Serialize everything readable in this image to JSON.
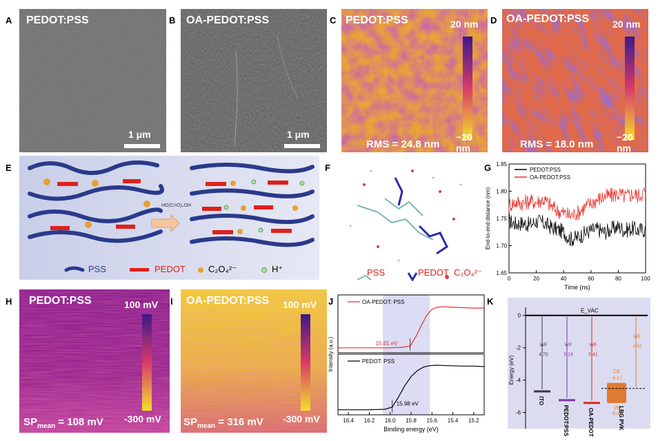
{
  "panel_letters": [
    "A",
    "B",
    "C",
    "D",
    "E",
    "F",
    "G",
    "H",
    "I",
    "J",
    "K"
  ],
  "panelA": {
    "title": "PEDOT:PSS",
    "scale": "1 μm"
  },
  "panelB": {
    "title": "OA-PEDOT:PSS",
    "scale": "1 μm"
  },
  "panelC": {
    "title": "PEDOT:PSS",
    "cb_max": "20 nm",
    "cb_min": "−20 nm",
    "rms": "RMS = 24.8 nm"
  },
  "panelD": {
    "title": "OA-PEDOT:PSS",
    "cb_max": "20 nm",
    "cb_min": "−20 nm",
    "rms": "RMS = 18.0 nm"
  },
  "panelE": {
    "legend": {
      "pss": "PSS",
      "pedot": "PEDOT",
      "c2o4": "C₂O₄²⁻",
      "h": "H⁺"
    }
  },
  "panelF": {
    "legend": {
      "pss": "PSS",
      "pedot": "PEDOT",
      "c2o4": "C₂O₄²⁻"
    }
  },
  "panelH": {
    "title": "PEDOT:PSS",
    "cb_max": "100 mV",
    "cb_min": "-300 mV",
    "sp_main": "SP",
    "sp_sub": "mean",
    "sp_val": " = 108 mV"
  },
  "panelI": {
    "title": "OA-PEDOT:PSS",
    "cb_max": "100 mV",
    "cb_min": "-300 mV",
    "sp_main": "SP",
    "sp_sub": "mean",
    "sp_val": " = 316 mV"
  },
  "colors": {
    "pedot_pss": "#000000",
    "oa_pedot_pss": "#e8302a",
    "pss_chain": "#2a3a8c",
    "pedot_unit": "#e0201a",
    "kpfm_low": "#f2e02a",
    "kpfm_high": "#3b1a8a"
  },
  "chart_data": [
    {
      "panel": "G",
      "type": "line",
      "xlabel": "Time (ns)",
      "ylabel": "End-to-end distance (nm)",
      "xlim": [
        0,
        100
      ],
      "ylim": [
        1.65,
        1.85
      ],
      "xticks": [
        0,
        20,
        40,
        60,
        80,
        100
      ],
      "yticks": [
        1.65,
        1.7,
        1.75,
        1.8,
        1.85
      ],
      "legend_position": "top-left",
      "series": [
        {
          "name": "PEDOT:PSS",
          "color": "#000000",
          "x": [
            0,
            5,
            10,
            15,
            20,
            25,
            30,
            35,
            40,
            45,
            50,
            55,
            60,
            65,
            70,
            75,
            80,
            85,
            90,
            95,
            100
          ],
          "y": [
            1.745,
            1.74,
            1.742,
            1.738,
            1.745,
            1.742,
            1.735,
            1.73,
            1.725,
            1.712,
            1.715,
            1.722,
            1.728,
            1.73,
            1.725,
            1.73,
            1.735,
            1.728,
            1.732,
            1.728,
            1.73
          ]
        },
        {
          "name": "OA-PEDOT:PSS",
          "color": "#e8302a",
          "x": [
            0,
            5,
            10,
            15,
            20,
            25,
            30,
            35,
            40,
            45,
            50,
            55,
            60,
            65,
            70,
            75,
            80,
            85,
            90,
            95,
            100
          ],
          "y": [
            1.775,
            1.78,
            1.778,
            1.782,
            1.78,
            1.785,
            1.775,
            1.765,
            1.76,
            1.755,
            1.76,
            1.77,
            1.778,
            1.785,
            1.79,
            1.792,
            1.795,
            1.79,
            1.795,
            1.792,
            1.8
          ]
        }
      ]
    },
    {
      "panel": "J",
      "type": "line",
      "xlabel": "Binding energy (eV)",
      "ylabel": "Intensity (a.u.)",
      "xlim": [
        16.5,
        15.1
      ],
      "xticks": [
        16.4,
        16.2,
        16.0,
        15.8,
        15.6,
        15.4,
        15.2
      ],
      "series": [
        {
          "name": "OA-PEDOT: PSS",
          "color": "#e8302a",
          "annotation": "15.81 eV",
          "x": [
            16.5,
            16.2,
            16.0,
            15.9,
            15.81,
            15.75,
            15.7,
            15.65,
            15.6,
            15.55,
            15.5,
            15.4,
            15.3,
            15.2,
            15.1
          ],
          "y": [
            0.02,
            0.02,
            0.02,
            0.03,
            0.06,
            0.3,
            0.55,
            0.78,
            0.92,
            0.97,
            0.98,
            0.97,
            0.96,
            0.95,
            0.95
          ]
        },
        {
          "name": "PEDOT: PSS",
          "color": "#000000",
          "annotation": "15.98 eV",
          "x": [
            16.5,
            16.2,
            16.05,
            15.98,
            15.92,
            15.86,
            15.8,
            15.74,
            15.68,
            15.62,
            15.55,
            15.45,
            15.3,
            15.2,
            15.1
          ],
          "y": [
            0.02,
            0.02,
            0.03,
            0.08,
            0.3,
            0.55,
            0.75,
            0.88,
            0.96,
            0.99,
            1.0,
            0.99,
            0.98,
            0.98,
            0.97
          ]
        }
      ]
    },
    {
      "panel": "K",
      "type": "diagram",
      "ylabel": "Energy (eV)",
      "yticks": [
        0,
        -2,
        -4,
        -6
      ],
      "ylim": [
        -7,
        0.5
      ],
      "evac": "E_VAC",
      "levels": [
        {
          "name": "ITO",
          "wf_label": "WF",
          "wf": "4.70",
          "value": -4.7,
          "color": "#3a3a3a"
        },
        {
          "name": "PEDOT:PSS",
          "wf_label": "WF",
          "wf": "5.24",
          "value": -5.24,
          "color": "#7a3aa8"
        },
        {
          "name": "OA-PEDOT:PSS",
          "wf_label": "WF",
          "wf": "5.41",
          "value": -5.41,
          "color": "#e0201a"
        },
        {
          "name": "LBG PVK",
          "cb_label": "CB",
          "cb": "-4.17",
          "vb_label": "VB",
          "vb": "-5.42",
          "wf_label": "WF",
          "wf": "4.52",
          "cb_value": -4.17,
          "vb_value": -5.42,
          "wf_value": -4.52,
          "color": "#e07a30"
        }
      ]
    }
  ]
}
